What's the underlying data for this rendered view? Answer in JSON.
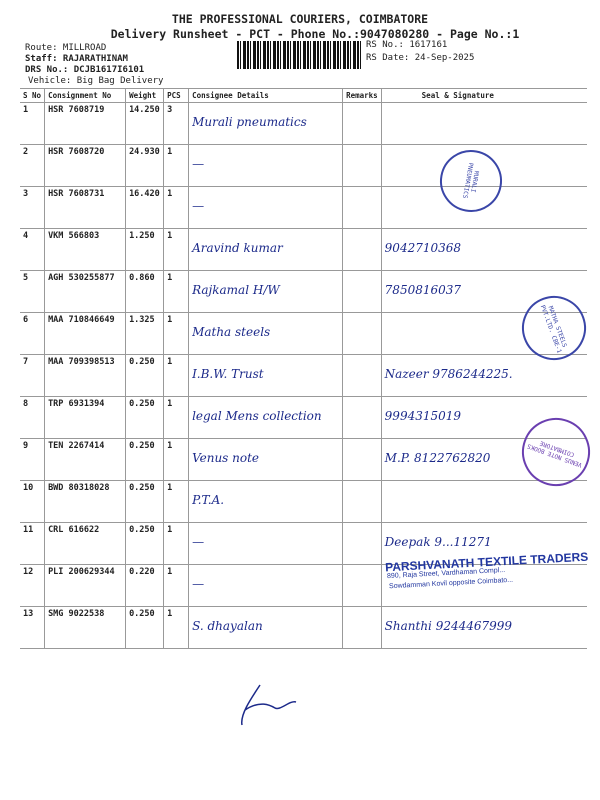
{
  "header": {
    "company": "THE PROFESSIONAL COURIERS, COIMBATORE",
    "subtitle": "Delivery Runsheet - PCT - Phone No.:9047080280 - Page No.:1",
    "route": "Route: MILLROAD",
    "staff": "Staff: RAJARATHINAM",
    "drs": "DRS No.: DCJB1617I6101",
    "vehicle": "Vehicle: Big Bag Delivery",
    "rs_no": "RS No.: 1617161",
    "rs_date": "RS Date: 24-Sep-2025"
  },
  "columns": [
    "S No",
    "Consignment No",
    "Weight",
    "PCS",
    "Consignee Details",
    "Remarks",
    "Seal & Signature"
  ],
  "rows": [
    {
      "sno": "1",
      "cn": "HSR 7608719",
      "weight": "14.250",
      "pcs": "3",
      "consignee": "Murali pneumatics",
      "seal": ""
    },
    {
      "sno": "2",
      "cn": "HSR 7608720",
      "weight": "24.930",
      "pcs": "1",
      "consignee": "—",
      "seal": ""
    },
    {
      "sno": "3",
      "cn": "HSR 7608731",
      "weight": "16.420",
      "pcs": "1",
      "consignee": "—",
      "seal": ""
    },
    {
      "sno": "4",
      "cn": "VKM 566803",
      "weight": "1.250",
      "pcs": "1",
      "consignee": "Aravind kumar",
      "seal": "9042710368"
    },
    {
      "sno": "5",
      "cn": "AGH 530255877",
      "weight": "0.860",
      "pcs": "1",
      "consignee": "Rajkamal H/W",
      "seal": "7850816037"
    },
    {
      "sno": "6",
      "cn": "MAA 710846649",
      "weight": "1.325",
      "pcs": "1",
      "consignee": "Matha steels",
      "seal": ""
    },
    {
      "sno": "7",
      "cn": "MAA 709398513",
      "weight": "0.250",
      "pcs": "1",
      "consignee": "I.B.W. Trust",
      "seal": "Nazeer 9786244225."
    },
    {
      "sno": "8",
      "cn": "TRP 6931394",
      "weight": "0.250",
      "pcs": "1",
      "consignee": "legal Mens collection",
      "seal": "9994315019"
    },
    {
      "sno": "9",
      "cn": "TEN 2267414",
      "weight": "0.250",
      "pcs": "1",
      "consignee": "Venus note",
      "seal": "M.P. 8122762820"
    },
    {
      "sno": "10",
      "cn": "BWD 80318028",
      "weight": "0.250",
      "pcs": "1",
      "consignee": "P.T.A.",
      "seal": ""
    },
    {
      "sno": "11",
      "cn": "CRL 616622",
      "weight": "0.250",
      "pcs": "1",
      "consignee": "—",
      "seal": "Deepak 9...11271"
    },
    {
      "sno": "12",
      "cn": "PLI 200629344",
      "weight": "0.220",
      "pcs": "1",
      "consignee": "—",
      "seal": ""
    },
    {
      "sno": "13",
      "cn": "SMG 9022538",
      "weight": "0.250",
      "pcs": "1",
      "consignee": "S. dhayalan",
      "seal": "Shanthi 9244467999"
    }
  ],
  "stamps": {
    "murali": "MURALI PNEUMATICS",
    "matha": "MATHA STEELS PVT.LTD. CBE-1",
    "venus": "VENUS NOTE BOOKS COIMBATORE",
    "parshvanath_name": "PARSHVANATH TEXTILE TRADERS",
    "parshvanath_addr1": "890, Raja Street, Vardhaman Compl...",
    "parshvanath_addr2": "Sowdamman Kovil opposite Coimbato..."
  },
  "colors": {
    "ink": "#1c2a8a",
    "stamp": "#3a46a8"
  }
}
